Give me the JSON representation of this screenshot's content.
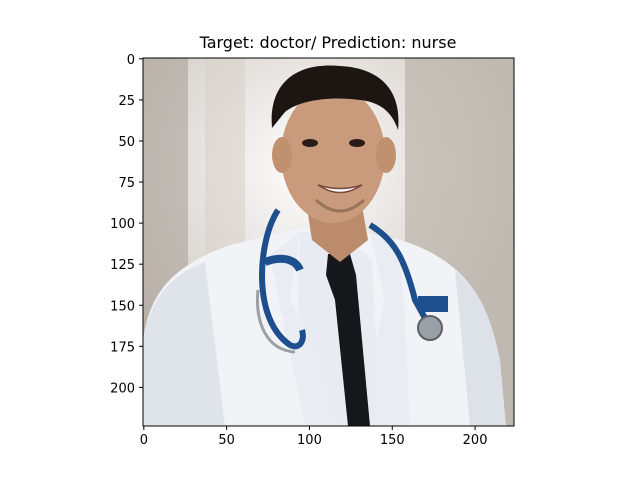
{
  "chart_data": {
    "type": "image",
    "title": "Target: doctor/ Prediction: nurse",
    "image_subject": "portrait of a smiling young man in a white coat with a stethoscope and black tie",
    "xlim": [
      -0.5,
      223.5
    ],
    "ylim": [
      223.5,
      -0.5
    ],
    "x_ticks": [
      0,
      50,
      100,
      150,
      200
    ],
    "y_ticks": [
      0,
      25,
      50,
      75,
      100,
      125,
      150,
      175,
      200
    ],
    "grid": false,
    "colors": {
      "background": "#d8d4cf",
      "wall_left": "#b9b2ab",
      "wall_right": "#c8c2bb",
      "coat": "#f2f3f6",
      "coat_shadow": "#d7dbe3",
      "shirt": "#e8ebf2",
      "tie": "#15171a",
      "skin": "#c99a7c",
      "hair": "#1c1512",
      "stethoscope": "#1d4f8f",
      "steel": "#9aa0a8"
    }
  }
}
